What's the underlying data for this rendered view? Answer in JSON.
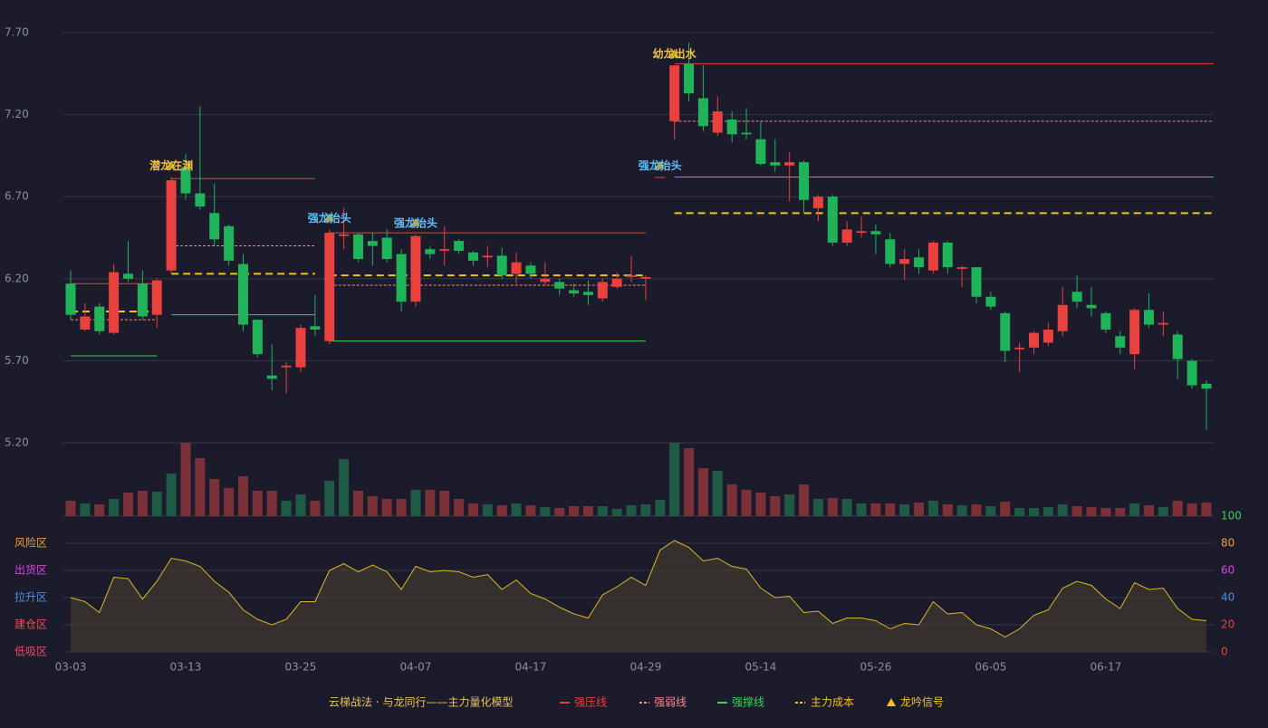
{
  "chart_data": {
    "type": "candlestick",
    "categories": [
      "03-03",
      null,
      null,
      null,
      null,
      null,
      null,
      null,
      "03-13",
      null,
      null,
      null,
      null,
      null,
      null,
      null,
      "03-25",
      null,
      null,
      null,
      null,
      null,
      null,
      null,
      "04-07",
      null,
      null,
      null,
      null,
      null,
      null,
      null,
      "04-17",
      null,
      null,
      null,
      null,
      null,
      null,
      null,
      "04-29",
      null,
      null,
      null,
      null,
      null,
      null,
      null,
      "05-14",
      null,
      null,
      null,
      null,
      null,
      null,
      null,
      "05-26",
      null,
      null,
      null,
      null,
      null,
      null,
      null,
      "06-05",
      null,
      null,
      null,
      null,
      null,
      null,
      null,
      "06-17",
      null,
      null,
      null,
      null,
      null,
      null,
      null
    ],
    "open": [
      6.17,
      5.89,
      6.03,
      5.87,
      6.23,
      6.17,
      5.98,
      6.25,
      6.88,
      6.72,
      6.6,
      6.52,
      6.29,
      5.95,
      5.61,
      5.66,
      5.66,
      5.91,
      5.82,
      6.46,
      6.47,
      6.43,
      6.45,
      6.35,
      6.06,
      6.38,
      6.37,
      6.43,
      6.36,
      6.33,
      6.34,
      6.23,
      6.28,
      6.18,
      6.18,
      6.13,
      6.12,
      6.08,
      6.15,
      6.21,
      6.2,
      6.82,
      7.16,
      7.51,
      7.3,
      7.09,
      7.17,
      7.09,
      7.05,
      6.91,
      6.89,
      6.91,
      6.63,
      6.7,
      6.42,
      6.48,
      6.49,
      6.44,
      6.29,
      6.33,
      6.25,
      6.42,
      6.26,
      6.27,
      6.09,
      5.99,
      5.77,
      5.78,
      5.81,
      5.88,
      6.12,
      6.04,
      5.99,
      5.85,
      5.74,
      6.01,
      5.92,
      5.86,
      5.7,
      5.56
    ],
    "close": [
      5.98,
      5.97,
      5.88,
      6.24,
      6.2,
      5.97,
      6.19,
      6.8,
      6.72,
      6.64,
      6.44,
      6.31,
      5.92,
      5.74,
      5.59,
      5.67,
      5.9,
      5.89,
      6.48,
      6.47,
      6.32,
      6.4,
      6.32,
      6.06,
      6.46,
      6.35,
      6.38,
      6.37,
      6.31,
      6.34,
      6.22,
      6.3,
      6.23,
      6.2,
      6.14,
      6.11,
      6.1,
      6.18,
      6.2,
      6.22,
      6.21,
      6.82,
      7.5,
      7.33,
      7.13,
      7.22,
      7.08,
      7.08,
      6.9,
      6.89,
      6.91,
      6.68,
      6.7,
      6.42,
      6.5,
      6.49,
      6.47,
      6.29,
      6.32,
      6.27,
      6.42,
      6.27,
      6.27,
      6.09,
      6.03,
      5.76,
      5.78,
      5.87,
      5.89,
      6.04,
      6.06,
      6.02,
      5.89,
      5.78,
      6.01,
      5.92,
      5.93,
      5.71,
      5.55,
      5.53
    ],
    "high": [
      6.25,
      6.05,
      6.05,
      6.29,
      6.43,
      6.25,
      6.2,
      6.82,
      6.96,
      7.25,
      6.78,
      6.53,
      6.35,
      5.95,
      5.8,
      5.69,
      5.92,
      6.1,
      6.5,
      6.63,
      6.48,
      6.48,
      6.5,
      6.38,
      6.47,
      6.4,
      6.52,
      6.44,
      6.37,
      6.4,
      6.39,
      6.36,
      6.3,
      6.3,
      6.2,
      6.17,
      6.19,
      6.2,
      6.24,
      6.34,
      6.22,
      6.82,
      7.5,
      7.64,
      7.5,
      7.31,
      7.22,
      7.24,
      7.16,
      7.05,
      6.97,
      6.92,
      6.71,
      6.71,
      6.55,
      6.58,
      6.53,
      6.48,
      6.38,
      6.38,
      6.43,
      6.43,
      6.28,
      6.27,
      6.12,
      6.0,
      5.81,
      5.88,
      5.93,
      6.15,
      6.22,
      6.15,
      6.0,
      5.88,
      6.02,
      6.11,
      6.0,
      5.88,
      5.71,
      5.58
    ],
    "low": [
      5.95,
      5.88,
      5.86,
      5.86,
      6.18,
      5.95,
      5.9,
      6.23,
      6.68,
      6.62,
      6.4,
      6.28,
      5.88,
      5.72,
      5.52,
      5.5,
      5.63,
      5.85,
      5.8,
      6.38,
      6.3,
      6.28,
      6.3,
      6.0,
      6.03,
      6.32,
      6.28,
      6.35,
      6.28,
      6.27,
      6.2,
      6.17,
      6.2,
      6.16,
      6.1,
      6.09,
      6.04,
      6.06,
      6.14,
      6.18,
      6.07,
      6.82,
      7.05,
      7.28,
      7.1,
      7.07,
      7.03,
      7.05,
      6.89,
      6.85,
      6.67,
      6.6,
      6.55,
      6.4,
      6.4,
      6.45,
      6.35,
      6.27,
      6.19,
      6.23,
      6.23,
      6.23,
      6.15,
      6.05,
      6.01,
      5.69,
      5.63,
      5.74,
      5.79,
      5.85,
      6.02,
      5.97,
      5.87,
      5.74,
      5.65,
      5.9,
      5.85,
      5.59,
      5.53,
      5.28
    ],
    "up_color": "#e8413e",
    "down_color": "#1fb35a",
    "ylim": [
      5.2,
      7.7
    ],
    "yticks": [
      {
        "value": 5.2,
        "label": "5.20"
      },
      {
        "value": 5.7,
        "label": "5.70"
      },
      {
        "value": 6.2,
        "label": "6.20"
      },
      {
        "value": 6.7,
        "label": "6.70"
      },
      {
        "value": 7.2,
        "label": "7.20"
      },
      {
        "value": 7.7,
        "label": "7.70"
      }
    ],
    "grid": true,
    "levels": [
      {
        "name": "强压线",
        "color": "#e8413e",
        "dash": false,
        "segments": [
          {
            "value": 6.17,
            "from": 0,
            "to": 6
          },
          {
            "value": 6.81,
            "from": 7,
            "to": 17
          },
          {
            "value": 6.48,
            "from": 18,
            "to": 40
          },
          {
            "value": 7.51,
            "from": 42,
            "to": 79
          }
        ]
      },
      {
        "name": "强弱线",
        "color": "#f48a8a",
        "dash": true,
        "segments": [
          {
            "value": 5.95,
            "from": 0,
            "to": 6
          },
          {
            "value": 6.4,
            "from": 7,
            "to": 17
          },
          {
            "value": 6.16,
            "from": 18,
            "to": 40
          },
          {
            "value": 7.16,
            "from": 42,
            "to": 79
          }
        ]
      },
      {
        "name": "强撑线",
        "color": "#3ecf5b",
        "dash": false,
        "segments": [
          {
            "value": 5.73,
            "from": 0,
            "to": 6
          },
          {
            "value": 5.98,
            "from": 7,
            "to": 17
          },
          {
            "value": 5.82,
            "from": 18,
            "to": 40
          },
          {
            "value": 6.82,
            "from": 42,
            "to": 79
          }
        ]
      },
      {
        "name": "主力成本",
        "color": "#f0c419",
        "dash": true,
        "segments": [
          {
            "value": 6.0,
            "from": 0,
            "to": 6
          },
          {
            "value": 6.23,
            "from": 7,
            "to": 17
          },
          {
            "value": 6.22,
            "from": 18,
            "to": 40
          },
          {
            "value": 6.6,
            "from": 42,
            "to": 79
          }
        ]
      }
    ],
    "signals": {
      "name": "龙吟信号",
      "color": "#f0c419",
      "points": [
        {
          "index": 7,
          "label": "潜龙在渊",
          "color": "#f0c040"
        },
        {
          "index": 18,
          "label": "强龙抬头",
          "color": "#5bc0f8"
        },
        {
          "index": 24,
          "label": "强龙抬头",
          "color": "#5bc0f8"
        },
        {
          "index": 41,
          "label": "强龙抬头",
          "color": "#5bc0f8"
        },
        {
          "index": 42,
          "label": "幼龙出水",
          "color": "#f0c040"
        }
      ]
    },
    "volume": {
      "ylim": [
        0,
        81
      ],
      "values": [
        17,
        14,
        13,
        19,
        26,
        28,
        27,
        47,
        81,
        64,
        41,
        31,
        44,
        28,
        28,
        17,
        24,
        17,
        39,
        63,
        28,
        22,
        19,
        19,
        29,
        29,
        28,
        19,
        14,
        13,
        12,
        14,
        12,
        10,
        9,
        11,
        11,
        11,
        8,
        12,
        13,
        18,
        81,
        75,
        53,
        50,
        35,
        29,
        26,
        22,
        24,
        35,
        19,
        20,
        19,
        14,
        14,
        14,
        13,
        15,
        17,
        13,
        12,
        13,
        11,
        16,
        9,
        9,
        10,
        13,
        11,
        10,
        9,
        9,
        14,
        12,
        10,
        17,
        14,
        15
      ],
      "colors": [
        "#7a3238",
        "#1f5a44",
        "#7a3238",
        "#1f5a44",
        "#7a3238",
        "#7a3238",
        "#1f5a44",
        "#1f5a44",
        "#7a3238",
        "#7a3238",
        "#7a3238",
        "#7a3238",
        "#7a3238",
        "#7a3238",
        "#7a3238",
        "#1f5a44",
        "#1f5a44",
        "#7a3238",
        "#1f5a44",
        "#1f5a44",
        "#7a3238",
        "#7a3238",
        "#7a3238",
        "#7a3238",
        "#1f5a44",
        "#7a3238",
        "#7a3238",
        "#7a3238",
        "#7a3238",
        "#1f5a44",
        "#7a3238",
        "#1f5a44",
        "#7a3238",
        "#1f5a44",
        "#7a3238",
        "#7a3238",
        "#7a3238",
        "#1f5a44",
        "#1f5a44",
        "#1f5a44",
        "#1f5a44",
        "#1f5a44",
        "#1f5a44",
        "#7a3238",
        "#7a3238",
        "#1f5a44",
        "#7a3238",
        "#7a3238",
        "#7a3238",
        "#7a3238",
        "#1f5a44",
        "#7a3238",
        "#1f5a44",
        "#7a3238",
        "#1f5a44",
        "#1f5a44",
        "#7a3238",
        "#7a3238",
        "#1f5a44",
        "#7a3238",
        "#1f5a44",
        "#7a3238",
        "#1f5a44",
        "#7a3238",
        "#1f5a44",
        "#7a3238",
        "#1f5a44",
        "#1f5a44",
        "#1f5a44",
        "#1f5a44",
        "#7a3238",
        "#7a3238",
        "#7a3238",
        "#7a3238",
        "#1f5a44",
        "#7a3238",
        "#1f5a44",
        "#7a3238",
        "#7a3238",
        "#7a3238"
      ]
    },
    "oscillator": {
      "color": "#d9b826",
      "ylim": [
        0,
        100
      ],
      "values": [
        40,
        37,
        29,
        55,
        54,
        39,
        52,
        69,
        67,
        63,
        52,
        44,
        31,
        24,
        20,
        24,
        37,
        37,
        60,
        65,
        59,
        64,
        59,
        46,
        63,
        59,
        60,
        59,
        55,
        57,
        46,
        53,
        43,
        39,
        33,
        28,
        25,
        42,
        48,
        55,
        49,
        75,
        82,
        77,
        67,
        69,
        63,
        61,
        47,
        40,
        41,
        29,
        30,
        21,
        25,
        25,
        23,
        17,
        21,
        20,
        37,
        28,
        29,
        20,
        17,
        11,
        17,
        27,
        31,
        47,
        52,
        49,
        39,
        32,
        51,
        46,
        47,
        32,
        24,
        23
      ],
      "yticks": [
        0,
        20,
        40,
        60,
        80,
        100
      ],
      "tick_colors": [
        "#e8413e",
        "#e8413e",
        "#4a90e2",
        "#e040e0",
        "#f0a030",
        "#3ecf5b"
      ],
      "zones": [
        {
          "value": 80,
          "label": "风险区",
          "color": "#f0a030"
        },
        {
          "value": 60,
          "label": "出货区",
          "color": "#e040e0"
        },
        {
          "value": 40,
          "label": "拉升区",
          "color": "#4a90e2"
        },
        {
          "value": 20,
          "label": "建仓区",
          "color": "#e85050"
        },
        {
          "value": 0,
          "label": "低吸区",
          "color": "#e05060"
        }
      ]
    },
    "legend_title": "云梯战法 · 与龙同行——主力量化模型",
    "legend_title_color": "#e6c35c"
  }
}
